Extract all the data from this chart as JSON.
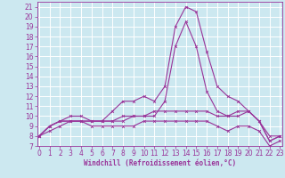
{
  "title": "",
  "xlabel": "Windchill (Refroidissement éolien,°C)",
  "background_color": "#cce8f0",
  "grid_color": "#ffffff",
  "line_color": "#993399",
  "x_hours": [
    0,
    1,
    2,
    3,
    4,
    5,
    6,
    7,
    8,
    9,
    10,
    11,
    12,
    13,
    14,
    15,
    16,
    17,
    18,
    19,
    20,
    21,
    22,
    23
  ],
  "ylim": [
    7,
    21.5
  ],
  "xlim": [
    -0.2,
    23.2
  ],
  "series": [
    [
      8.0,
      9.0,
      9.5,
      10.0,
      10.0,
      9.5,
      9.5,
      10.5,
      11.5,
      11.5,
      12.0,
      11.5,
      13.0,
      19.0,
      21.0,
      20.5,
      16.5,
      13.0,
      12.0,
      11.5,
      10.5,
      9.5,
      7.5,
      8.0
    ],
    [
      8.0,
      9.0,
      9.5,
      9.5,
      9.5,
      9.5,
      9.5,
      9.5,
      10.0,
      10.0,
      10.0,
      10.0,
      11.5,
      17.0,
      19.5,
      17.0,
      12.5,
      10.5,
      10.0,
      10.0,
      10.5,
      9.5,
      7.5,
      8.0
    ],
    [
      8.0,
      9.0,
      9.5,
      9.5,
      9.5,
      9.5,
      9.5,
      9.5,
      9.5,
      10.0,
      10.0,
      10.5,
      10.5,
      10.5,
      10.5,
      10.5,
      10.5,
      10.0,
      10.0,
      10.5,
      10.5,
      9.5,
      8.0,
      8.0
    ],
    [
      8.0,
      8.5,
      9.0,
      9.5,
      9.5,
      9.0,
      9.0,
      9.0,
      9.0,
      9.0,
      9.5,
      9.5,
      9.5,
      9.5,
      9.5,
      9.5,
      9.5,
      9.0,
      8.5,
      9.0,
      9.0,
      8.5,
      7.0,
      7.5
    ]
  ],
  "yticks": [
    7,
    8,
    9,
    10,
    11,
    12,
    13,
    14,
    15,
    16,
    17,
    18,
    19,
    20,
    21
  ],
  "xticks": [
    0,
    1,
    2,
    3,
    4,
    5,
    6,
    7,
    8,
    9,
    10,
    11,
    12,
    13,
    14,
    15,
    16,
    17,
    18,
    19,
    20,
    21,
    22,
    23
  ],
  "tick_fontsize": 5.5,
  "xlabel_fontsize": 5.5,
  "marker_size": 2.0,
  "linewidth": 0.8
}
